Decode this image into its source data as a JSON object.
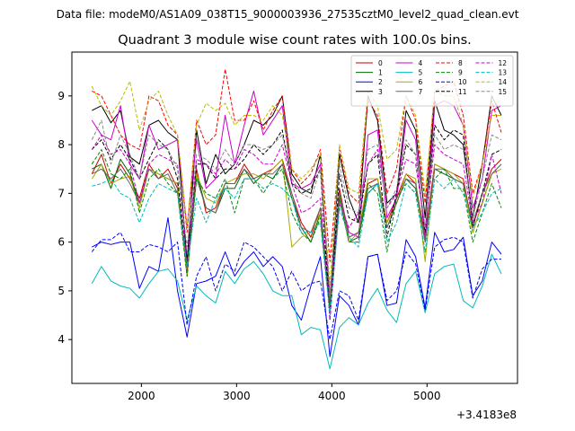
{
  "header_text": "Data file: modeM0/AS1A09_038T15_9000003936_27535cztM0_level2_quad_clean.evt",
  "chart_data": {
    "type": "line",
    "title": "Quadrant 3 module wise count rates with 100.0s bins.",
    "xlabel": "",
    "ylabel": "",
    "x_offset_label": "+3.4183e8",
    "xlim": [
      1270,
      5950
    ],
    "ylim": [
      3.1,
      9.9
    ],
    "xticks": [
      2000,
      3000,
      4000,
      5000
    ],
    "yticks": [
      4,
      5,
      6,
      7,
      8,
      9
    ],
    "grid": false,
    "legend_position": "top-right",
    "legend_columns": 4,
    "x": [
      1480,
      1580,
      1680,
      1780,
      1880,
      1980,
      2080,
      2180,
      2280,
      2380,
      2480,
      2580,
      2680,
      2780,
      2880,
      2980,
      3080,
      3180,
      3280,
      3380,
      3480,
      3580,
      3680,
      3780,
      3880,
      3980,
      4080,
      4180,
      4280,
      4380,
      4480,
      4580,
      4680,
      4780,
      4880,
      4980,
      5080,
      5180,
      5280,
      5380,
      5480,
      5580,
      5680,
      5780
    ],
    "series": [
      {
        "name": "0",
        "color": "#cc0000",
        "dashed": false,
        "values": [
          7.4,
          7.8,
          7.2,
          7.6,
          7.3,
          6.9,
          7.6,
          7.3,
          7.5,
          7.1,
          5.4,
          7.5,
          6.6,
          6.7,
          7.2,
          7.2,
          7.6,
          7.3,
          7.4,
          7.5,
          7.7,
          7.0,
          6.4,
          6.1,
          6.7,
          4.6,
          7.1,
          6.1,
          6.2,
          7.2,
          7.3,
          6.4,
          6.9,
          7.4,
          7.2,
          6.1,
          7.6,
          7.5,
          7.4,
          7.3,
          6.3,
          7.0,
          7.5,
          7.7
        ]
      },
      {
        "name": "1",
        "color": "#006400",
        "dashed": false,
        "values": [
          7.5,
          7.6,
          7.1,
          7.7,
          7.4,
          6.8,
          7.5,
          7.4,
          7.3,
          7.2,
          5.3,
          7.4,
          6.7,
          6.6,
          7.1,
          7.1,
          7.5,
          7.2,
          7.4,
          7.3,
          7.6,
          6.9,
          6.3,
          6.0,
          6.6,
          4.6,
          6.9,
          6.0,
          6.1,
          7.0,
          7.2,
          6.3,
          6.8,
          7.3,
          7.1,
          6.0,
          7.5,
          7.4,
          7.3,
          7.2,
          6.2,
          6.8,
          7.4,
          7.6
        ]
      },
      {
        "name": "2",
        "color": "#0000ff",
        "dashed": false,
        "values": [
          5.9,
          6.0,
          5.95,
          6.0,
          6.0,
          5.05,
          5.5,
          5.4,
          6.5,
          5.0,
          4.05,
          5.15,
          5.2,
          5.3,
          5.8,
          5.3,
          5.6,
          5.8,
          5.5,
          5.7,
          5.5,
          4.7,
          4.4,
          5.1,
          5.7,
          3.65,
          4.9,
          4.7,
          4.3,
          5.7,
          5.75,
          4.7,
          4.75,
          6.05,
          5.7,
          4.65,
          6.2,
          5.8,
          5.85,
          6.1,
          4.9,
          5.2,
          6.0,
          5.75
        ]
      },
      {
        "name": "3",
        "color": "#000000",
        "dashed": false,
        "values": [
          8.7,
          8.8,
          8.45,
          8.7,
          7.75,
          7.6,
          8.4,
          8.5,
          8.25,
          8.1,
          5.6,
          8.3,
          7.2,
          7.8,
          7.4,
          7.6,
          8.0,
          8.5,
          8.4,
          8.6,
          9.0,
          7.4,
          7.1,
          7.0,
          7.8,
          4.7,
          7.8,
          6.9,
          6.4,
          9.0,
          8.5,
          6.8,
          7.0,
          8.7,
          8.3,
          6.5,
          8.9,
          8.3,
          8.2,
          8.0,
          6.5,
          7.6,
          9.0,
          8.6
        ]
      },
      {
        "name": "4",
        "color": "#cc00cc",
        "dashed": false,
        "values": [
          8.5,
          8.2,
          8.1,
          8.8,
          7.6,
          7.3,
          8.4,
          7.9,
          8.0,
          8.1,
          6.3,
          8.1,
          7.1,
          7.3,
          8.6,
          7.6,
          8.4,
          9.1,
          8.2,
          8.5,
          8.8,
          7.2,
          7.1,
          7.2,
          7.6,
          4.9,
          7.0,
          6.2,
          6.1,
          8.2,
          8.3,
          6.5,
          6.9,
          8.5,
          8.1,
          6.0,
          8.8,
          8.9,
          8.8,
          8.4,
          6.7,
          7.3,
          8.7,
          8.8
        ]
      },
      {
        "name": "5",
        "color": "#00bbbb",
        "dashed": false,
        "values": [
          5.15,
          5.5,
          5.2,
          5.1,
          5.05,
          4.85,
          5.15,
          5.4,
          5.45,
          5.2,
          4.4,
          5.1,
          4.9,
          4.75,
          5.4,
          5.15,
          5.45,
          5.6,
          5.35,
          5.0,
          4.9,
          4.9,
          4.1,
          4.25,
          4.2,
          3.4,
          4.25,
          4.45,
          4.3,
          4.75,
          5.05,
          4.6,
          4.35,
          5.15,
          5.4,
          4.55,
          5.35,
          5.5,
          5.55,
          4.8,
          4.65,
          5.1,
          5.75,
          5.35
        ]
      },
      {
        "name": "6",
        "color": "#aaaa00",
        "dashed": false,
        "values": [
          7.3,
          7.6,
          7.2,
          7.3,
          7.35,
          6.7,
          7.5,
          7.4,
          7.3,
          7.2,
          5.3,
          7.4,
          6.9,
          6.8,
          7.2,
          7.3,
          7.4,
          7.4,
          7.3,
          7.5,
          7.7,
          5.9,
          6.1,
          6.2,
          6.6,
          4.7,
          7.0,
          6.0,
          6.2,
          7.3,
          7.3,
          6.4,
          6.8,
          7.4,
          7.3,
          5.6,
          7.6,
          7.5,
          7.4,
          7.2,
          6.2,
          6.8,
          7.4,
          7.5
        ]
      },
      {
        "name": "7",
        "color": "#666666",
        "dashed": false,
        "values": [
          7.4,
          7.5,
          7.3,
          7.5,
          7.2,
          6.8,
          7.5,
          7.3,
          7.4,
          7.0,
          5.5,
          7.3,
          6.7,
          6.6,
          7.2,
          7.2,
          7.5,
          7.3,
          7.4,
          7.4,
          7.6,
          7.0,
          6.3,
          6.2,
          6.7,
          4.7,
          7.0,
          6.1,
          6.2,
          7.1,
          7.2,
          6.3,
          6.8,
          7.3,
          7.2,
          6.0,
          7.5,
          7.5,
          7.3,
          7.2,
          6.4,
          7.0,
          7.4,
          7.6
        ]
      },
      {
        "name": "8",
        "color": "#ff0000",
        "dashed": true,
        "values": [
          9.1,
          9.0,
          8.6,
          8.2,
          8.0,
          7.9,
          9.0,
          8.9,
          8.4,
          8.2,
          6.2,
          8.5,
          8.0,
          8.2,
          9.55,
          8.5,
          8.5,
          8.9,
          8.3,
          8.7,
          9.0,
          7.5,
          7.2,
          7.4,
          7.9,
          5.6,
          7.9,
          7.0,
          6.8,
          8.9,
          8.6,
          7.0,
          7.5,
          9.0,
          8.5,
          6.8,
          9.1,
          9.2,
          9.3,
          8.6,
          7.0,
          7.6,
          8.9,
          8.25
        ]
      },
      {
        "name": "9",
        "color": "#008800",
        "dashed": true,
        "values": [
          7.6,
          7.9,
          7.4,
          7.3,
          7.5,
          6.6,
          7.3,
          7.5,
          7.2,
          7.0,
          5.3,
          7.3,
          7.0,
          6.9,
          7.3,
          6.6,
          7.3,
          7.3,
          7.0,
          7.3,
          7.5,
          6.6,
          6.2,
          6.0,
          6.5,
          4.6,
          6.9,
          6.0,
          6.0,
          7.2,
          7.0,
          5.8,
          6.9,
          7.2,
          7.0,
          5.8,
          7.3,
          7.5,
          7.1,
          7.1,
          6.0,
          6.6,
          7.2,
          6.7
        ]
      },
      {
        "name": "10",
        "color": "#0000ff",
        "dashed": true,
        "values": [
          5.8,
          6.05,
          6.05,
          6.2,
          5.8,
          5.8,
          5.95,
          5.9,
          5.8,
          6.0,
          4.3,
          5.3,
          5.7,
          5.0,
          5.55,
          5.4,
          6.0,
          5.9,
          5.7,
          5.5,
          5.0,
          5.4,
          5.0,
          5.15,
          5.2,
          4.0,
          5.0,
          4.9,
          4.4,
          5.7,
          5.75,
          4.8,
          5.0,
          5.8,
          5.55,
          4.6,
          5.9,
          6.05,
          6.1,
          6.0,
          4.85,
          5.45,
          5.65,
          5.65
        ]
      },
      {
        "name": "11",
        "color": "#000000",
        "dashed": true,
        "values": [
          7.9,
          8.1,
          7.7,
          8.0,
          7.7,
          7.3,
          7.7,
          8.1,
          7.9,
          7.3,
          5.5,
          7.6,
          7.6,
          7.3,
          7.5,
          7.5,
          7.7,
          8.0,
          7.8,
          8.0,
          8.3,
          7.2,
          7.0,
          7.1,
          7.5,
          4.4,
          7.4,
          6.5,
          6.4,
          7.6,
          7.8,
          6.1,
          7.0,
          8.0,
          7.8,
          6.2,
          8.4,
          8.1,
          8.3,
          8.2,
          6.3,
          7.0,
          7.8,
          7.9
        ]
      },
      {
        "name": "12",
        "color": "#cc00cc",
        "dashed": true,
        "values": [
          7.9,
          8.2,
          7.8,
          7.9,
          7.6,
          6.8,
          7.6,
          7.8,
          7.7,
          7.6,
          5.5,
          7.7,
          7.6,
          7.4,
          7.7,
          7.5,
          7.9,
          7.8,
          7.6,
          7.6,
          8.0,
          7.2,
          6.6,
          6.7,
          6.9,
          4.4,
          6.8,
          6.3,
          6.6,
          7.6,
          7.9,
          6.7,
          7.0,
          7.7,
          7.6,
          6.3,
          8.0,
          7.8,
          7.7,
          7.6,
          6.4,
          6.8,
          7.8,
          7.0
        ]
      },
      {
        "name": "13",
        "color": "#00bbbb",
        "dashed": true,
        "values": [
          7.15,
          7.2,
          7.3,
          7.0,
          6.9,
          6.4,
          6.9,
          7.2,
          7.1,
          7.0,
          5.5,
          6.9,
          6.4,
          6.9,
          7.1,
          6.9,
          7.3,
          7.3,
          7.1,
          7.2,
          7.1,
          6.9,
          6.2,
          6.2,
          6.4,
          4.5,
          6.7,
          6.1,
          5.9,
          7.0,
          7.2,
          6.0,
          6.4,
          7.2,
          7.0,
          5.8,
          7.3,
          7.1,
          7.3,
          7.0,
          6.3,
          6.6,
          7.0,
          7.1
        ]
      },
      {
        "name": "14",
        "color": "#bbbb00",
        "dashed": true,
        "values": [
          9.2,
          8.8,
          8.6,
          8.9,
          9.3,
          8.3,
          8.9,
          9.1,
          8.6,
          8.2,
          6.3,
          8.4,
          8.85,
          8.7,
          8.85,
          8.4,
          8.6,
          8.6,
          8.5,
          8.8,
          8.6,
          7.5,
          7.3,
          7.5,
          7.8,
          5.1,
          8.0,
          7.1,
          7.0,
          9.1,
          8.8,
          7.7,
          7.9,
          9.0,
          8.6,
          7.0,
          9.1,
          9.0,
          9.0,
          8.4,
          6.9,
          7.6,
          8.6,
          8.6
        ]
      },
      {
        "name": "15",
        "color": "#888888",
        "dashed": true,
        "values": [
          8.1,
          8.5,
          7.6,
          8.2,
          7.8,
          7.3,
          8.2,
          8.0,
          7.9,
          7.5,
          5.9,
          7.8,
          7.7,
          7.5,
          7.9,
          7.6,
          8.0,
          8.0,
          7.9,
          8.0,
          8.2,
          7.3,
          7.0,
          6.9,
          7.5,
          4.9,
          7.6,
          6.7,
          6.6,
          7.9,
          8.0,
          6.7,
          7.1,
          8.1,
          7.8,
          6.3,
          8.2,
          7.9,
          8.0,
          7.9,
          6.5,
          7.3,
          8.2,
          8.1
        ]
      }
    ]
  }
}
